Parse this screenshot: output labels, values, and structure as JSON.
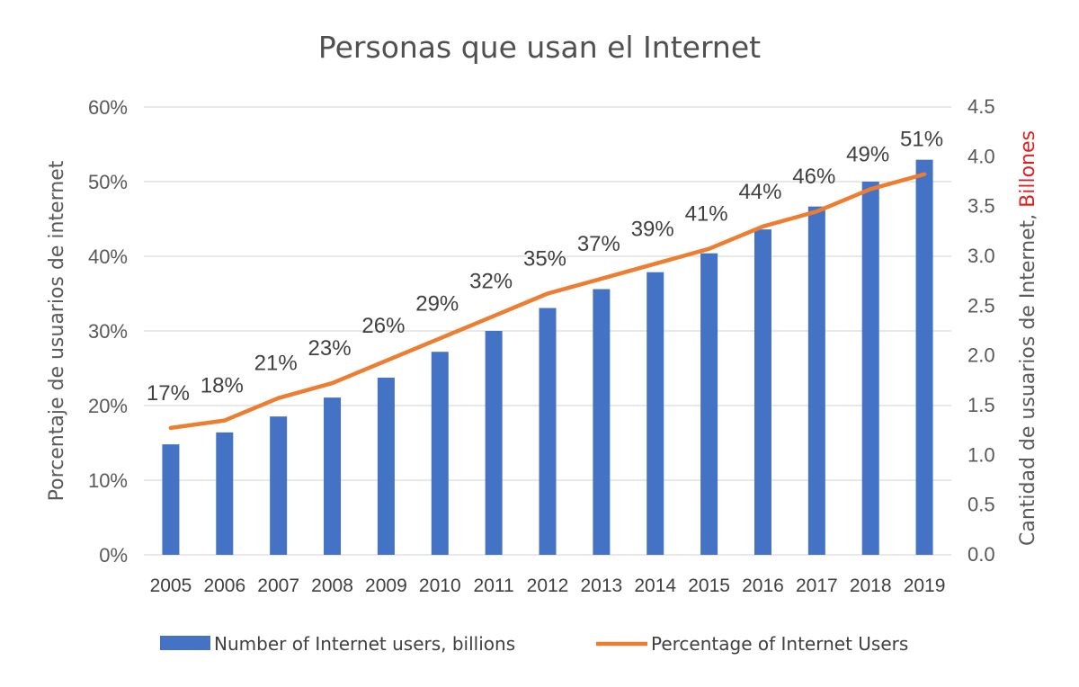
{
  "chart_data": {
    "type": "bar",
    "title": "Personas que usan el Internet",
    "categories": [
      "2005",
      "2006",
      "2007",
      "2008",
      "2009",
      "2010",
      "2011",
      "2012",
      "2013",
      "2014",
      "2015",
      "2016",
      "2017",
      "2018",
      "2019"
    ],
    "series": [
      {
        "name": "Number of Internet users, billions",
        "type": "bar",
        "axis": "right",
        "color": "#4472C4",
        "values": [
          1.11,
          1.23,
          1.39,
          1.58,
          1.78,
          2.04,
          2.25,
          2.48,
          2.67,
          2.84,
          3.03,
          3.27,
          3.5,
          3.75,
          3.97
        ]
      },
      {
        "name": "Percentage of Internet Users",
        "type": "line",
        "axis": "left",
        "color": "#ED7D31",
        "values": [
          17,
          18,
          21,
          23,
          26,
          29,
          32,
          35,
          37,
          39,
          41,
          44,
          46,
          49,
          51
        ],
        "labels": [
          "17%",
          "18%",
          "21%",
          "23%",
          "26%",
          "29%",
          "32%",
          "35%",
          "37%",
          "39%",
          "41%",
          "44%",
          "46%",
          "49%",
          "51%"
        ]
      }
    ],
    "y_left": {
      "label": "Porcentaje de usuarios de internet",
      "ylim": [
        0,
        60
      ],
      "ticks": [
        "0%",
        "10%",
        "20%",
        "30%",
        "40%",
        "50%",
        "60%"
      ]
    },
    "y_right": {
      "label": "Cantidad de usuarios de Internet, ",
      "label_highlight": "Billones",
      "label_highlight_color": "#E02020",
      "ylim": [
        0,
        4.5
      ],
      "ticks": [
        "0.0",
        "0.5",
        "1.0",
        "1.5",
        "2.0",
        "2.5",
        "3.0",
        "3.5",
        "4.0",
        "4.5"
      ]
    },
    "grid": true,
    "legend": "bottom"
  }
}
